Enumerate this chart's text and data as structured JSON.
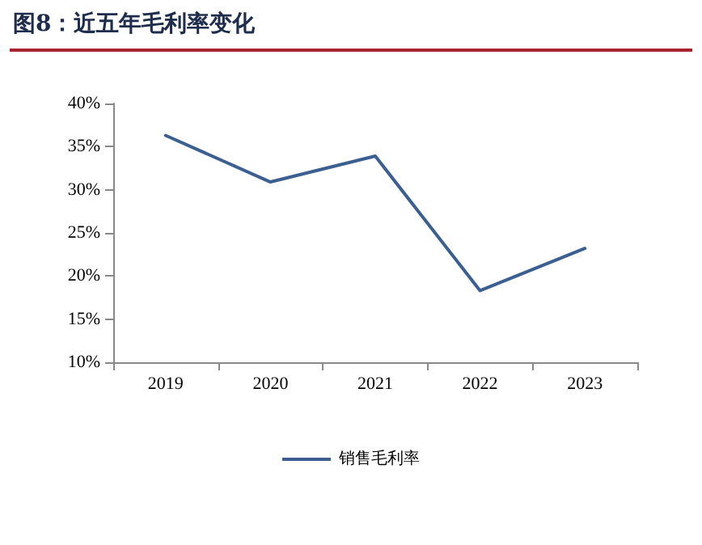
{
  "chart_data": {
    "type": "line",
    "title": "图8：近五年毛利率变化",
    "categories": [
      "2019",
      "2020",
      "2021",
      "2022",
      "2023"
    ],
    "series": [
      {
        "name": "销售毛利率",
        "color": "#3c5f91",
        "values": [
          36.3,
          30.9,
          33.9,
          18.3,
          23.2
        ]
      }
    ],
    "ylim": [
      10,
      40
    ],
    "yticks": [
      {
        "value": 10,
        "label": "10%"
      },
      {
        "value": 15,
        "label": "15%"
      },
      {
        "value": 20,
        "label": "20%"
      },
      {
        "value": 25,
        "label": "25%"
      },
      {
        "value": 30,
        "label": "30%"
      },
      {
        "value": 35,
        "label": "35%"
      },
      {
        "value": 40,
        "label": "40%"
      }
    ],
    "grid": false,
    "legend": "bottom",
    "marker": "none",
    "line_style": "solid"
  }
}
